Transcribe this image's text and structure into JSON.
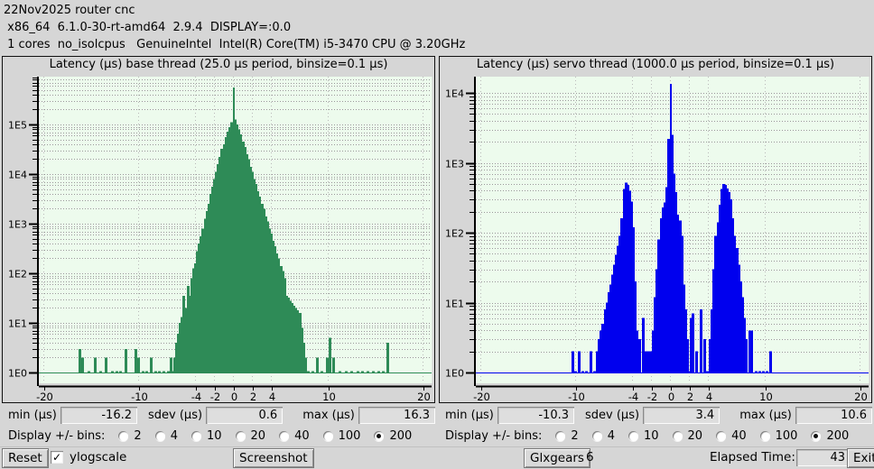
{
  "header": {
    "line1": "22Nov2025 router cnc",
    "line2": " x86_64  6.1.0-30-rt-amd64  2.9.4  DISPLAY=:0.0",
    "line3": " 1 cores  no_isolcpus   GenuineIntel  Intel(R) Core(TM) i5-3470 CPU @ 3.20GHz"
  },
  "labels": {
    "min": "min (µs)",
    "sdev": "sdev (µs)",
    "max": "max (µs)",
    "bins": "Display +/- bins:"
  },
  "bins_options": [
    "2",
    "4",
    "10",
    "20",
    "40",
    "100",
    "200"
  ],
  "charts": [
    {
      "stats": {
        "min": "-16.2",
        "sdev": "0.6",
        "max": "16.3"
      },
      "bins_selected": "200"
    },
    {
      "stats": {
        "min": "-10.3",
        "sdev": "3.4",
        "max": "10.6"
      },
      "bins_selected": "200"
    }
  ],
  "chart_data": [
    {
      "type": "bar",
      "title": "Latency (µs) base thread (25.0 µs period, binsize=0.1 µs)",
      "color": "#2e8b57",
      "plot_bg": "#edfbed",
      "grid_color": "#999999",
      "y_scale": "log",
      "y_ticks": [
        "1E0",
        "1E1",
        "1E2",
        "1E3",
        "1E4",
        "1E5"
      ],
      "x_ticks": [
        -20,
        -10,
        -4,
        -2,
        0,
        2,
        4,
        10,
        20
      ],
      "xlim": [
        -20,
        20
      ],
      "xlabel_unit": "µs",
      "bars": [
        [
          -16.2,
          3
        ],
        [
          -15.9,
          2
        ],
        [
          -15.2,
          1
        ],
        [
          -14.6,
          2
        ],
        [
          -14.0,
          1
        ],
        [
          -13.4,
          2
        ],
        [
          -12.8,
          1
        ],
        [
          -12.3,
          1
        ],
        [
          -11.9,
          1
        ],
        [
          -11.3,
          3
        ],
        [
          -10.3,
          3
        ],
        [
          -10.0,
          2
        ],
        [
          -9.5,
          1
        ],
        [
          -9.1,
          1
        ],
        [
          -8.7,
          2
        ],
        [
          -8.2,
          1
        ],
        [
          -7.8,
          1
        ],
        [
          -7.3,
          1
        ],
        [
          -6.9,
          1
        ],
        [
          -6.6,
          2
        ],
        [
          -6.4,
          1
        ],
        [
          -6.2,
          2
        ],
        [
          -6.0,
          4
        ],
        [
          -5.8,
          6
        ],
        [
          -5.6,
          10
        ],
        [
          -5.4,
          13
        ],
        [
          -5.2,
          35
        ],
        [
          -5.0,
          20
        ],
        [
          -4.8,
          56
        ],
        [
          -4.6,
          35
        ],
        [
          -4.4,
          80
        ],
        [
          -4.2,
          125
        ],
        [
          -4.0,
          160
        ],
        [
          -3.8,
          280
        ],
        [
          -3.6,
          400
        ],
        [
          -3.4,
          560
        ],
        [
          -3.2,
          800
        ],
        [
          -3.0,
          1250
        ],
        [
          -2.8,
          1800
        ],
        [
          -2.6,
          2500
        ],
        [
          -2.4,
          4000
        ],
        [
          -2.2,
          5600
        ],
        [
          -2.0,
          8000
        ],
        [
          -1.8,
          11000
        ],
        [
          -1.6,
          16000
        ],
        [
          -1.4,
          22000
        ],
        [
          -1.2,
          32000
        ],
        [
          -1.0,
          40000
        ],
        [
          -0.8,
          56000
        ],
        [
          -0.6,
          71000
        ],
        [
          -0.4,
          89000
        ],
        [
          -0.2,
          112000
        ],
        [
          0.0,
          560000
        ],
        [
          0.2,
          126000
        ],
        [
          0.4,
          100000
        ],
        [
          0.6,
          79000
        ],
        [
          0.8,
          63000
        ],
        [
          1.0,
          45000
        ],
        [
          1.2,
          35000
        ],
        [
          1.4,
          25000
        ],
        [
          1.6,
          20000
        ],
        [
          1.8,
          14000
        ],
        [
          2.0,
          11000
        ],
        [
          2.2,
          8000
        ],
        [
          2.4,
          6300
        ],
        [
          2.6,
          4500
        ],
        [
          2.8,
          3500
        ],
        [
          3.0,
          2500
        ],
        [
          3.2,
          2000
        ],
        [
          3.4,
          1400
        ],
        [
          3.6,
          1100
        ],
        [
          3.8,
          800
        ],
        [
          4.0,
          630
        ],
        [
          4.2,
          450
        ],
        [
          4.4,
          350
        ],
        [
          4.6,
          250
        ],
        [
          4.8,
          200
        ],
        [
          5.0,
          140
        ],
        [
          5.2,
          110
        ],
        [
          5.4,
          80
        ],
        [
          5.6,
          35
        ],
        [
          5.8,
          32
        ],
        [
          6.0,
          28
        ],
        [
          6.2,
          25
        ],
        [
          6.4,
          22
        ],
        [
          6.6,
          20
        ],
        [
          6.8,
          18
        ],
        [
          7.0,
          16
        ],
        [
          7.2,
          8
        ],
        [
          7.4,
          4
        ],
        [
          7.6,
          2
        ],
        [
          7.9,
          1
        ],
        [
          8.4,
          1
        ],
        [
          8.9,
          2
        ],
        [
          9.3,
          1
        ],
        [
          9.9,
          2
        ],
        [
          10.2,
          5
        ],
        [
          10.6,
          2
        ],
        [
          11.2,
          1
        ],
        [
          11.9,
          1
        ],
        [
          12.5,
          1
        ],
        [
          13.1,
          1
        ],
        [
          13.6,
          1
        ],
        [
          14.2,
          1
        ],
        [
          14.8,
          1
        ],
        [
          15.3,
          1
        ],
        [
          15.8,
          1
        ],
        [
          16.3,
          4
        ]
      ]
    },
    {
      "type": "bar",
      "title": "Latency (µs) servo thread (1000.0 µs period, binsize=0.1 µs)",
      "color": "#0000ee",
      "plot_bg": "#edfbed",
      "grid_color": "#999999",
      "y_scale": "log",
      "y_ticks": [
        "1E0",
        "1E1",
        "1E2",
        "1E3",
        "1E4"
      ],
      "x_ticks": [
        -20,
        -10,
        -4,
        -2,
        0,
        2,
        4,
        10,
        20
      ],
      "xlim": [
        -20,
        20
      ],
      "xlabel_unit": "µs",
      "bars": [
        [
          -10.3,
          2
        ],
        [
          -10.0,
          1
        ],
        [
          -9.6,
          2
        ],
        [
          -9.2,
          1
        ],
        [
          -8.9,
          1
        ],
        [
          -8.4,
          2
        ],
        [
          -8.0,
          1
        ],
        [
          -7.7,
          2
        ],
        [
          -7.5,
          3
        ],
        [
          -7.3,
          4
        ],
        [
          -7.1,
          5
        ],
        [
          -6.9,
          8
        ],
        [
          -6.7,
          10
        ],
        [
          -6.5,
          14
        ],
        [
          -6.3,
          18
        ],
        [
          -6.1,
          25
        ],
        [
          -5.9,
          35
        ],
        [
          -5.7,
          48
        ],
        [
          -5.5,
          65
        ],
        [
          -5.3,
          90
        ],
        [
          -5.1,
          160
        ],
        [
          -4.9,
          420
        ],
        [
          -4.7,
          520
        ],
        [
          -4.5,
          480
        ],
        [
          -4.3,
          400
        ],
        [
          -4.1,
          280
        ],
        [
          -3.9,
          120
        ],
        [
          -3.7,
          20
        ],
        [
          -3.5,
          4
        ],
        [
          -3.2,
          3
        ],
        [
          -2.9,
          6
        ],
        [
          -2.6,
          2
        ],
        [
          -2.3,
          2
        ],
        [
          -2.0,
          2
        ],
        [
          -1.8,
          4
        ],
        [
          -1.6,
          12
        ],
        [
          -1.4,
          30
        ],
        [
          -1.2,
          80
        ],
        [
          -1.0,
          160
        ],
        [
          -0.8,
          230
        ],
        [
          -0.6,
          270
        ],
        [
          -0.4,
          450
        ],
        [
          -0.2,
          2200
        ],
        [
          0.0,
          13500
        ],
        [
          0.2,
          2500
        ],
        [
          0.4,
          700
        ],
        [
          0.6,
          380
        ],
        [
          0.8,
          180
        ],
        [
          1.0,
          150
        ],
        [
          1.2,
          90
        ],
        [
          1.4,
          18
        ],
        [
          1.6,
          8
        ],
        [
          1.8,
          3
        ],
        [
          2.0,
          1
        ],
        [
          2.2,
          6
        ],
        [
          2.4,
          7
        ],
        [
          2.8,
          2
        ],
        [
          3.2,
          8
        ],
        [
          3.6,
          3
        ],
        [
          3.9,
          1
        ],
        [
          4.2,
          3
        ],
        [
          4.4,
          8
        ],
        [
          4.6,
          30
        ],
        [
          4.8,
          90
        ],
        [
          5.0,
          140
        ],
        [
          5.2,
          250
        ],
        [
          5.4,
          420
        ],
        [
          5.6,
          500
        ],
        [
          5.8,
          480
        ],
        [
          6.0,
          430
        ],
        [
          6.2,
          380
        ],
        [
          6.4,
          300
        ],
        [
          6.6,
          160
        ],
        [
          6.8,
          90
        ],
        [
          7.0,
          60
        ],
        [
          7.2,
          35
        ],
        [
          7.4,
          20
        ],
        [
          7.6,
          12
        ],
        [
          7.8,
          6
        ],
        [
          8.0,
          3
        ],
        [
          8.4,
          4
        ],
        [
          8.6,
          4
        ],
        [
          9.0,
          1
        ],
        [
          9.4,
          1
        ],
        [
          9.8,
          1
        ],
        [
          10.2,
          1
        ],
        [
          10.6,
          2
        ]
      ]
    }
  ],
  "bottom": {
    "reset": "Reset",
    "ylogscale": "ylogscale",
    "ylogscale_checked": true,
    "check_glyph": "✓",
    "screenshot": "Screenshot",
    "glxgears": "Glxgears",
    "glxgears_count": "6",
    "elapsed_label": "Elapsed Time:",
    "elapsed_value": "43",
    "exit": "Exit"
  }
}
